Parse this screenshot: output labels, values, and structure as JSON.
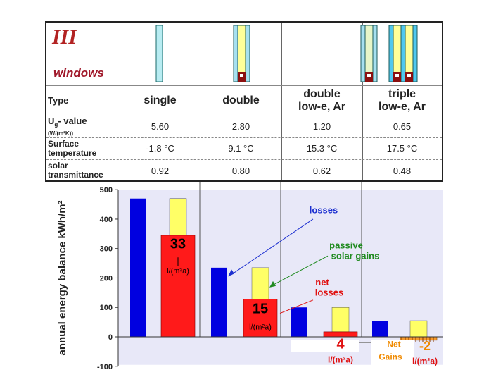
{
  "table": {
    "corner_title": "III",
    "corner_subtitle": "windows",
    "row_labels": {
      "type": "Type",
      "u_main": "U",
      "u_sub": "g",
      "u_rest": "- value",
      "u_unit": "(W/(m²K))",
      "surface": "Surface temperature",
      "solar": "solar transmittance"
    },
    "columns": [
      {
        "type_line1": "single",
        "type_line2": "",
        "u_value": "5.60",
        "surface_temp": "-1.8 °C",
        "solar": "0.92",
        "panes": 1
      },
      {
        "type_line1": "double",
        "type_line2": "",
        "u_value": "2.80",
        "surface_temp": "9.1 °C",
        "solar": "0.80",
        "panes": 2
      },
      {
        "type_line1": "double",
        "type_line2": "low-e, Ar",
        "u_value": "1.20",
        "surface_temp": "15.3 °C",
        "solar": "0.62",
        "panes": 2
      },
      {
        "type_line1": "triple",
        "type_line2": "low-e, Ar",
        "u_value": "0.65",
        "surface_temp": "17.5 °C",
        "solar": "0.48",
        "panes": 3
      }
    ]
  },
  "chart_data": {
    "type": "bar",
    "ylabel": "annual energy balance kWh/m²",
    "ylim": [
      -100,
      500
    ],
    "yticks": [
      500,
      400,
      300,
      200,
      100,
      0,
      -100
    ],
    "categories": [
      "single",
      "double",
      "double low-e, Ar",
      "triple low-e, Ar"
    ],
    "series": [
      {
        "name": "losses",
        "values": [
          470,
          235,
          100,
          55
        ]
      },
      {
        "name": "passive solar gains",
        "values": [
          -125,
          -107,
          -83,
          -57
        ]
      },
      {
        "name": "net losses",
        "values": [
          345,
          128,
          17,
          -2
        ]
      }
    ],
    "net_labels": [
      {
        "main": "33",
        "unit": "l/(m²a)"
      },
      {
        "main": "15",
        "unit": "l/(m²a)"
      },
      {
        "main": "4",
        "unit": "l/(m²a)"
      },
      {
        "main": "-2",
        "unit": "l/(m²a)"
      }
    ],
    "annotations": {
      "losses": "losses",
      "gains_line1": "passive",
      "gains_line2": "solar gains",
      "net_line1": "net",
      "net_line2": "losses",
      "netgains_line1": "Net",
      "netgains_line2": "Gains"
    },
    "colors": {
      "losses": "#0000e0",
      "gains": "#ffff66",
      "net": "#ff1a1a",
      "plot_bg": "#e8e8f8",
      "losses_text": "#1c2fd0",
      "gains_text": "#1f8a1f",
      "net_text": "#e01010",
      "netgains_text": "#f08a00"
    }
  }
}
